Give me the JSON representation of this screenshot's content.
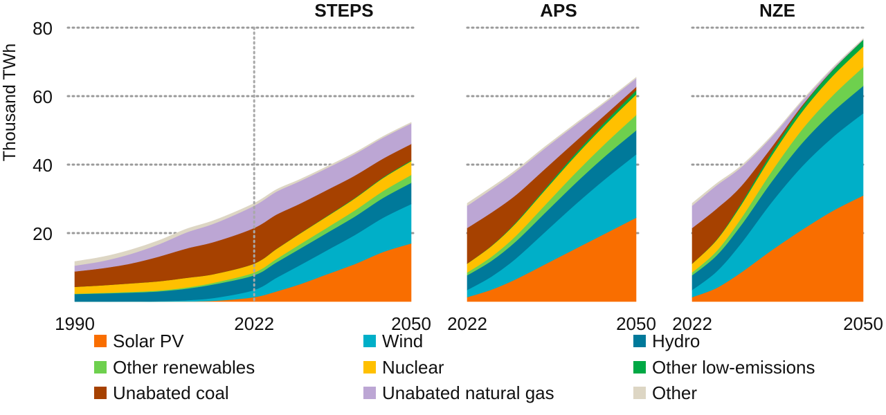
{
  "chart_data": {
    "type": "area",
    "stacked": true,
    "ylabel": "Thousand TWh",
    "ylim": [
      0,
      80
    ],
    "yticks": [
      20,
      40,
      60,
      80
    ],
    "grid": "horizontal-dotted",
    "legend_position": "bottom",
    "series_order": [
      "Solar PV",
      "Wind",
      "Hydro",
      "Other renewables",
      "Nuclear",
      "Other low-emissions",
      "Unabated coal",
      "Unabated natural gas",
      "Other"
    ],
    "colors": {
      "Solar PV": "#f96e00",
      "Wind": "#00afc8",
      "Hydro": "#00799a",
      "Other renewables": "#6ed04e",
      "Nuclear": "#ffc000",
      "Other low-emissions": "#00a844",
      "Unabated coal": "#a64100",
      "Unabated natural gas": "#bca6d4",
      "Other": "#ddd6c4"
    },
    "panels": [
      {
        "title": "STEPS",
        "xticks": [
          "1990",
          "2022",
          "2050"
        ],
        "x": [
          1990,
          1995,
          2000,
          2005,
          2010,
          2015,
          2022,
          2026,
          2030,
          2035,
          2040,
          2045,
          2050
        ],
        "marker_year": 2022,
        "series": [
          {
            "name": "Solar PV",
            "values": [
              0,
              0,
              0,
              0,
              0.05,
              0.25,
              1.3,
              3.0,
              5.0,
              8.0,
              11.0,
              14.5,
              17.0
            ]
          },
          {
            "name": "Wind",
            "values": [
              0,
              0.01,
              0.03,
              0.1,
              0.35,
              0.85,
              2.1,
              4.0,
              5.5,
              7.0,
              8.5,
              10.0,
              11.5
            ]
          },
          {
            "name": "Hydro",
            "values": [
              2.2,
              2.4,
              2.6,
              2.9,
              3.4,
              4.0,
              4.3,
              4.5,
              4.8,
              5.1,
              5.4,
              5.8,
              6.2
            ]
          },
          {
            "name": "Other renewables",
            "values": [
              0.1,
              0.15,
              0.2,
              0.25,
              0.35,
              0.5,
              0.8,
              1.0,
              1.3,
              1.5,
              1.8,
              2.0,
              2.3
            ]
          },
          {
            "name": "Nuclear",
            "values": [
              2.0,
              2.2,
              2.5,
              2.7,
              2.8,
              2.5,
              2.6,
              2.9,
              3.1,
              3.3,
              3.5,
              3.8,
              4.0
            ]
          },
          {
            "name": "Other low-emissions",
            "values": [
              0,
              0,
              0,
              0,
              0,
              0,
              0.02,
              0.05,
              0.08,
              0.12,
              0.16,
              0.2,
              0.25
            ]
          },
          {
            "name": "Unabated coal",
            "values": [
              4.5,
              5.0,
              5.8,
              7.2,
              8.6,
              9.4,
              10.4,
              10.0,
              8.7,
              7.6,
              6.5,
              5.5,
              4.8
            ]
          },
          {
            "name": "Unabated natural gas",
            "values": [
              1.7,
              2.1,
              2.8,
              3.6,
              4.7,
              5.4,
              6.5,
              6.7,
              6.6,
              6.4,
              6.3,
              6.1,
              6.0
            ]
          },
          {
            "name": "Other",
            "values": [
              1.2,
              1.2,
              1.2,
              1.1,
              1.0,
              0.9,
              0.7,
              0.6,
              0.5,
              0.45,
              0.4,
              0.35,
              0.3
            ]
          }
        ]
      },
      {
        "title": "APS",
        "xticks": [
          "2022",
          "2050"
        ],
        "x": [
          2022,
          2026,
          2030,
          2035,
          2040,
          2045,
          2050
        ],
        "series": [
          {
            "name": "Solar PV",
            "values": [
              1.3,
              3.5,
              6.5,
              11.0,
              15.5,
              20.0,
              24.5
            ]
          },
          {
            "name": "Wind",
            "values": [
              2.1,
              3.8,
              6.0,
              9.5,
              13.0,
              16.0,
              18.5
            ]
          },
          {
            "name": "Hydro",
            "values": [
              4.3,
              4.6,
              5.0,
              5.6,
              6.2,
              6.7,
              7.0
            ]
          },
          {
            "name": "Other renewables",
            "values": [
              0.8,
              1.2,
              1.6,
              2.3,
              3.0,
              3.7,
              4.5
            ]
          },
          {
            "name": "Nuclear",
            "values": [
              2.6,
              3.1,
              3.7,
              4.4,
              5.0,
              5.5,
              6.0
            ]
          },
          {
            "name": "Other low-emissions",
            "values": [
              0.02,
              0.1,
              0.25,
              0.45,
              0.7,
              0.9,
              1.2
            ]
          },
          {
            "name": "Unabated coal",
            "values": [
              10.4,
              9.7,
              8.0,
              5.7,
              3.5,
              2.0,
              1.0
            ]
          },
          {
            "name": "Unabated natural gas",
            "values": [
              6.5,
              6.8,
              6.8,
              6.0,
              4.8,
              3.5,
              2.5
            ]
          },
          {
            "name": "Other",
            "values": [
              0.7,
              0.6,
              0.5,
              0.45,
              0.4,
              0.35,
              0.3
            ]
          }
        ]
      },
      {
        "title": "NZE",
        "xticks": [
          "2022",
          "2050"
        ],
        "x": [
          2022,
          2026,
          2030,
          2035,
          2040,
          2045,
          2050
        ],
        "series": [
          {
            "name": "Solar PV",
            "values": [
              1.3,
              4.0,
              8.5,
              15.0,
              21.0,
              26.5,
              31.0
            ]
          },
          {
            "name": "Wind",
            "values": [
              2.1,
              4.8,
              8.5,
              14.0,
              18.5,
              21.5,
              24.0
            ]
          },
          {
            "name": "Hydro",
            "values": [
              4.3,
              4.7,
              5.3,
              6.0,
              6.8,
              7.4,
              8.0
            ]
          },
          {
            "name": "Other renewables",
            "values": [
              0.8,
              1.3,
              2.0,
              3.0,
              4.0,
              4.8,
              5.5
            ]
          },
          {
            "name": "Nuclear",
            "values": [
              2.6,
              3.2,
              3.9,
              4.6,
              5.2,
              5.7,
              6.0
            ]
          },
          {
            "name": "Other low-emissions",
            "values": [
              0.02,
              0.15,
              0.5,
              1.0,
              1.4,
              1.7,
              2.0
            ]
          },
          {
            "name": "Unabated coal",
            "values": [
              10.4,
              9.0,
              5.0,
              1.5,
              0.4,
              0.1,
              0
            ]
          },
          {
            "name": "Unabated natural gas",
            "values": [
              6.5,
              6.8,
              5.5,
              3.0,
              1.2,
              0.4,
              0.1
            ]
          },
          {
            "name": "Other",
            "values": [
              0.7,
              0.55,
              0.45,
              0.35,
              0.3,
              0.25,
              0.2
            ]
          }
        ]
      }
    ]
  }
}
